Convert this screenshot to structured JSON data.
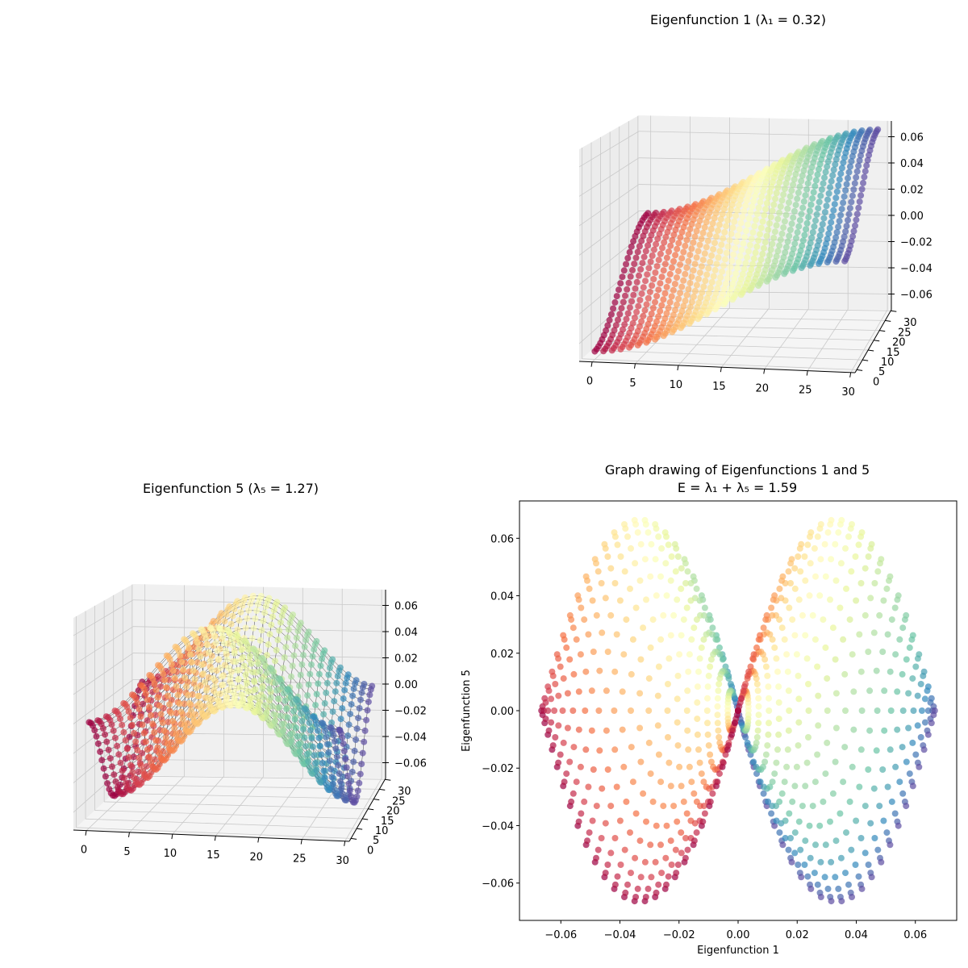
{
  "chart_data": [
    {
      "type": "scatter3d",
      "title": "Eigenfunction 1 (λ₁ = 0.32)",
      "eigenvalue": 0.32,
      "grid_size": 30,
      "scale": 0.03333,
      "modes": [
        {
          "kx": 1,
          "ky": 0,
          "coef": -1
        },
        {
          "kx": 0,
          "ky": 1,
          "coef": -1
        }
      ],
      "color_by": "x",
      "colormap": "Spectral",
      "wireframe": false,
      "xlim": [
        0,
        30
      ],
      "ylim": [
        0,
        30
      ],
      "zlim": [
        -0.066,
        0.066
      ],
      "xticks": [
        "0",
        "5",
        "10",
        "15",
        "20",
        "25",
        "30"
      ],
      "yticks": [
        "0",
        "5",
        "10",
        "15",
        "20",
        "25",
        "30"
      ],
      "zticks": [
        "0.06",
        "0.04",
        "0.02",
        "0.00",
        "−0.02",
        "−0.04",
        "−0.06"
      ]
    },
    {
      "type": "scatter3d",
      "title": "Eigenfunction 5 (λ₅ = 1.27)",
      "eigenvalue": 1.27,
      "grid_size": 30,
      "scale": 0.03333,
      "modes": [
        {
          "kx": 0,
          "ky": 2,
          "coef": 1
        },
        {
          "kx": 2,
          "ky": 0,
          "coef": -1
        }
      ],
      "color_by": "x",
      "colormap": "Spectral",
      "wireframe": true,
      "xlim": [
        0,
        30
      ],
      "ylim": [
        0,
        30
      ],
      "zlim": [
        -0.066,
        0.066
      ],
      "xticks": [
        "0",
        "5",
        "10",
        "15",
        "20",
        "25",
        "30"
      ],
      "yticks": [
        "0",
        "5",
        "10",
        "15",
        "20",
        "25",
        "30"
      ],
      "zticks": [
        "0.06",
        "0.04",
        "0.02",
        "0.00",
        "−0.02",
        "−0.04",
        "−0.06"
      ]
    },
    {
      "type": "scatter",
      "title_line1": "Graph drawing of Eigenfunctions 1 and 5",
      "title_line2": "E = λ₁ + λ₅ = 1.59",
      "energy": 1.59,
      "x_source": "Eigenfunction 1 values",
      "y_source": "Eigenfunction 5 values",
      "xlabel": "Eigenfunction 1",
      "ylabel": "Eigenfunction 5",
      "xlim": [
        -0.074,
        0.074
      ],
      "ylim": [
        -0.073,
        0.073
      ],
      "xticks": [
        "−0.06",
        "−0.04",
        "−0.02",
        "0.00",
        "0.02",
        "0.04",
        "0.06"
      ],
      "yticks": [
        "0.06",
        "0.04",
        "0.02",
        "0.00",
        "−0.02",
        "−0.04",
        "−0.06"
      ],
      "colormap": "Spectral"
    }
  ],
  "colormap_stops": [
    "#9e0142",
    "#d53e4f",
    "#f46d43",
    "#fdae61",
    "#fee08b",
    "#ffffbf",
    "#e6f598",
    "#abdda4",
    "#66c2a5",
    "#3288bd",
    "#5e4fa2"
  ]
}
